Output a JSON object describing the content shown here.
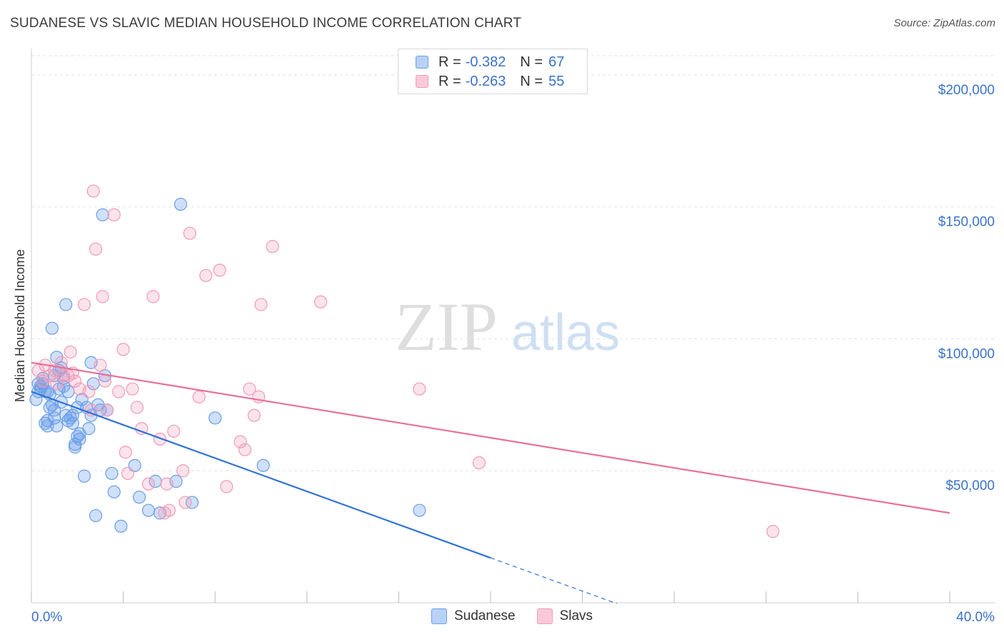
{
  "title": "SUDANESE VS SLAVIC MEDIAN HOUSEHOLD INCOME CORRELATION CHART",
  "source": "Source: ZipAtlas.com",
  "watermark": {
    "zip": "ZIP",
    "atlas": "atlas"
  },
  "legend": {
    "rows": [
      {
        "r_label": "R =",
        "r_value": "-0.382",
        "n_label": "N =",
        "n_value": "67"
      },
      {
        "r_label": "R =",
        "r_value": "-0.263",
        "n_label": "N =",
        "n_value": "55"
      }
    ]
  },
  "chart_data": {
    "type": "scatter",
    "title": "SUDANESE VS SLAVIC MEDIAN HOUSEHOLD INCOME CORRELATION CHART",
    "xlabel": "",
    "ylabel": "Median Household Income",
    "xlim": [
      0,
      40
    ],
    "ylim": [
      0,
      210000
    ],
    "x_tick_labels": [
      "0.0%",
      "40.0%"
    ],
    "y_tick_labels": [
      "$50,000",
      "$100,000",
      "$150,000",
      "$200,000"
    ],
    "y_ticks": [
      50000,
      100000,
      150000,
      200000
    ],
    "colors": {
      "sudanese": "#6a9ee8",
      "slavs": "#f09ab8",
      "sudanese_line": "#2f72d6",
      "slavs_line": "#e8709a",
      "axis_text": "#3b73c8"
    },
    "series": [
      {
        "name": "Sudanese",
        "r": -0.382,
        "n": 67,
        "trend": {
          "x0": 0,
          "y0": 80000,
          "x1": 20,
          "y1": 17000,
          "dash_to_x": 25.5
        },
        "points": [
          [
            0.2,
            77000
          ],
          [
            0.3,
            80000
          ],
          [
            0.4,
            82000
          ],
          [
            0.5,
            83000
          ],
          [
            0.6,
            80000
          ],
          [
            0.7,
            69000
          ],
          [
            0.7,
            67000
          ],
          [
            0.8,
            74000
          ],
          [
            0.8,
            79000
          ],
          [
            0.9,
            75000
          ],
          [
            1.0,
            70000
          ],
          [
            1.0,
            86000
          ],
          [
            1.1,
            67000
          ],
          [
            1.1,
            93000
          ],
          [
            1.2,
            81000
          ],
          [
            1.3,
            76000
          ],
          [
            1.3,
            89000
          ],
          [
            1.4,
            82000
          ],
          [
            1.5,
            71000
          ],
          [
            1.6,
            69000
          ],
          [
            1.6,
            80000
          ],
          [
            1.7,
            70000
          ],
          [
            1.8,
            68000
          ],
          [
            1.8,
            71000
          ],
          [
            1.9,
            59000
          ],
          [
            1.9,
            60000
          ],
          [
            2.0,
            63000
          ],
          [
            2.1,
            64000
          ],
          [
            2.1,
            62000
          ],
          [
            2.2,
            77000
          ],
          [
            2.3,
            48000
          ],
          [
            2.4,
            74000
          ],
          [
            2.5,
            66000
          ],
          [
            2.6,
            91000
          ],
          [
            2.7,
            83000
          ],
          [
            2.8,
            33000
          ],
          [
            2.9,
            75000
          ],
          [
            3.0,
            73000
          ],
          [
            3.1,
            147000
          ],
          [
            3.2,
            86000
          ],
          [
            3.3,
            73000
          ],
          [
            3.5,
            49000
          ],
          [
            3.6,
            42000
          ],
          [
            3.9,
            29000
          ],
          [
            4.7,
            40000
          ],
          [
            5.1,
            35000
          ],
          [
            5.4,
            46000
          ],
          [
            5.6,
            34000
          ],
          [
            6.3,
            46000
          ],
          [
            6.5,
            151000
          ],
          [
            7.0,
            38000
          ],
          [
            8.0,
            70000
          ],
          [
            10.1,
            52000
          ],
          [
            16.9,
            35000
          ],
          [
            0.5,
            85000
          ],
          [
            0.6,
            68000
          ],
          [
            1.0,
            73000
          ],
          [
            1.5,
            113000
          ],
          [
            0.9,
            104000
          ],
          [
            2.6,
            71000
          ],
          [
            1.4,
            85000
          ],
          [
            0.3,
            83000
          ],
          [
            4.5,
            52000
          ],
          [
            0.4,
            81000
          ],
          [
            1.2,
            88000
          ],
          [
            2.0,
            74000
          ],
          [
            0.7,
            80000
          ]
        ]
      },
      {
        "name": "Slavs",
        "r": -0.263,
        "n": 55,
        "trend": {
          "x0": 0,
          "y0": 91000,
          "x1": 40,
          "y1": 34000
        },
        "points": [
          [
            0.3,
            88000
          ],
          [
            0.5,
            84000
          ],
          [
            0.6,
            90000
          ],
          [
            0.8,
            86000
          ],
          [
            1.0,
            88000
          ],
          [
            1.1,
            83000
          ],
          [
            1.3,
            91000
          ],
          [
            1.4,
            86000
          ],
          [
            1.6,
            86000
          ],
          [
            1.7,
            95000
          ],
          [
            1.9,
            84000
          ],
          [
            2.1,
            81000
          ],
          [
            2.3,
            113000
          ],
          [
            2.6,
            73000
          ],
          [
            2.7,
            156000
          ],
          [
            2.8,
            134000
          ],
          [
            3.0,
            90000
          ],
          [
            3.1,
            116000
          ],
          [
            3.2,
            84000
          ],
          [
            3.3,
            73000
          ],
          [
            3.6,
            147000
          ],
          [
            3.8,
            80000
          ],
          [
            4.0,
            96000
          ],
          [
            4.1,
            57000
          ],
          [
            4.2,
            49000
          ],
          [
            4.4,
            81000
          ],
          [
            4.6,
            74000
          ],
          [
            4.8,
            66000
          ],
          [
            5.1,
            45000
          ],
          [
            5.3,
            116000
          ],
          [
            5.6,
            62000
          ],
          [
            5.9,
            45000
          ],
          [
            6.2,
            65000
          ],
          [
            6.6,
            50000
          ],
          [
            6.7,
            38000
          ],
          [
            6.9,
            140000
          ],
          [
            7.3,
            78000
          ],
          [
            7.6,
            124000
          ],
          [
            8.2,
            126000
          ],
          [
            8.5,
            44000
          ],
          [
            9.1,
            61000
          ],
          [
            9.3,
            58000
          ],
          [
            9.5,
            81000
          ],
          [
            9.7,
            71000
          ],
          [
            9.9,
            78000
          ],
          [
            10.0,
            113000
          ],
          [
            10.5,
            135000
          ],
          [
            12.6,
            114000
          ],
          [
            16.9,
            81000
          ],
          [
            19.5,
            53000
          ],
          [
            32.3,
            27000
          ],
          [
            5.8,
            34000
          ],
          [
            6.0,
            35000
          ],
          [
            1.8,
            87000
          ],
          [
            2.5,
            80000
          ]
        ]
      }
    ]
  },
  "bottom_legend": [
    {
      "label": "Sudanese"
    },
    {
      "label": "Slavs"
    }
  ]
}
